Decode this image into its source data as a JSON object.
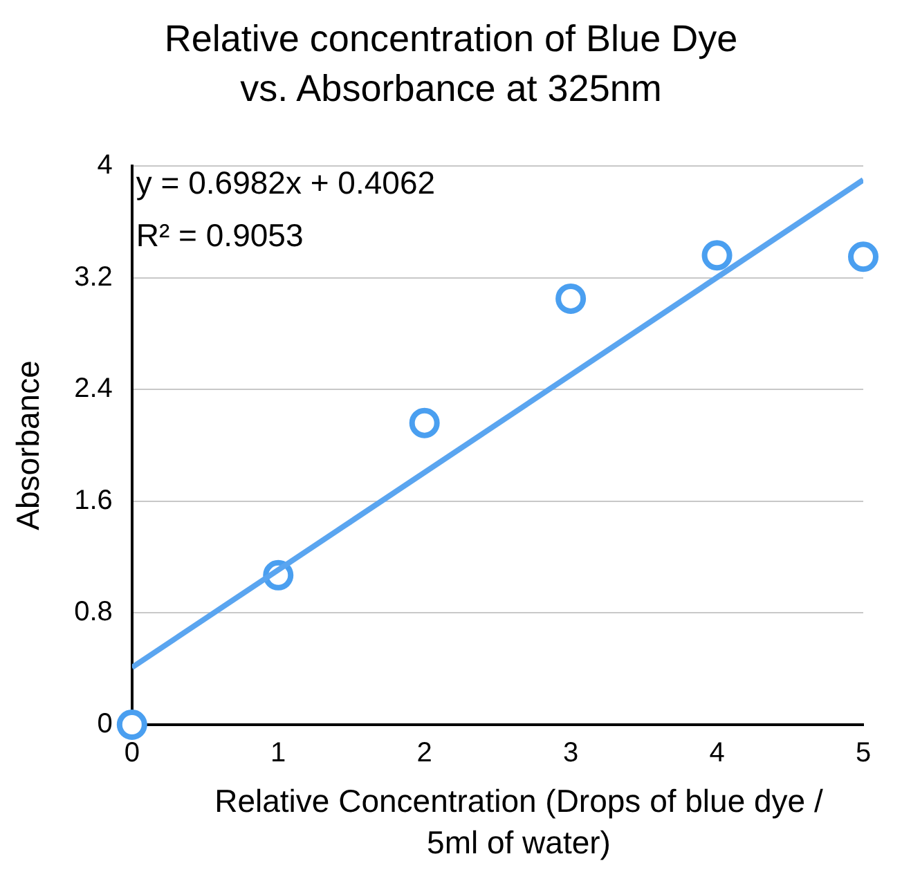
{
  "chart_data": {
    "type": "scatter",
    "title": "Relative concentration of Blue Dye vs. Absorbance at 325nm",
    "xlabel": "Relative Concentration (Drops of blue dye / 5ml of water)",
    "ylabel": "Absorbance",
    "x": [
      0,
      1,
      2,
      3,
      4,
      5
    ],
    "series": [
      {
        "type": "scatter",
        "color": "#4a9ff0",
        "marker": "circle",
        "values": [
          0,
          1.07,
          2.16,
          3.05,
          3.36,
          3.35
        ]
      },
      {
        "type": "line",
        "color": "#5aa5f0",
        "marker": "none",
        "x": [
          0,
          5
        ],
        "values": [
          0.41,
          3.9
        ]
      }
    ],
    "annotations": [
      "y = 0.6982x + 0.4062",
      "R² = 0.9053"
    ],
    "xlim": [
      0,
      5
    ],
    "xticks": [
      0,
      1,
      2,
      3,
      4,
      5
    ],
    "ylim": [
      0,
      4
    ],
    "yticks": [
      0,
      0.8,
      1.6,
      2.4,
      3.2,
      4
    ],
    "grid": "y",
    "legend": false
  }
}
